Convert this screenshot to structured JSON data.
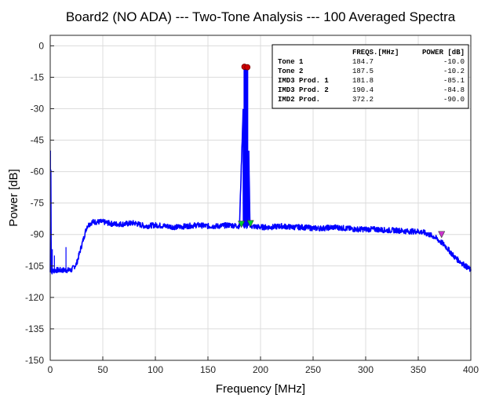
{
  "chart_data": {
    "type": "line",
    "title": "Board2 (NO ADA) --- Two-Tone Analysis --- 100 Averaged Spectra",
    "xlabel": "Frequency [MHz]",
    "ylabel": "Power [dB]",
    "xlim": [
      0,
      400
    ],
    "ylim": [
      -150,
      5
    ],
    "xticks": [
      0,
      50,
      100,
      150,
      200,
      250,
      300,
      350,
      400
    ],
    "yticks": [
      0,
      -15,
      -30,
      -45,
      -60,
      -75,
      -90,
      -105,
      -120,
      -135,
      -150
    ],
    "grid": true,
    "line_color": "#0000ff",
    "series": [
      {
        "x": [
          0,
          0.5,
          1,
          2,
          5,
          10,
          15,
          20,
          25,
          30,
          35,
          40,
          50,
          60,
          70,
          80,
          90,
          100,
          110,
          120,
          130,
          140,
          150,
          160,
          170,
          180,
          184.7,
          187.5,
          190,
          200,
          210,
          220,
          230,
          240,
          250,
          260,
          270,
          280,
          290,
          300,
          310,
          320,
          330,
          340,
          350,
          355,
          360,
          365,
          370,
          375,
          380,
          385,
          390,
          395,
          400
        ],
        "y": [
          -108,
          -50,
          -108,
          -107.5,
          -107,
          -107,
          -107,
          -107,
          -104,
          -95,
          -86,
          -84,
          -84,
          -85,
          -85,
          -84.5,
          -86,
          -85.5,
          -86,
          -86.5,
          -86,
          -85.5,
          -86,
          -86,
          -85.5,
          -86,
          -10,
          -10.2,
          -86,
          -86.5,
          -86.5,
          -86,
          -86.5,
          -86.5,
          -87,
          -87,
          -86.5,
          -87,
          -87.5,
          -87.5,
          -87.5,
          -88,
          -88,
          -88.5,
          -88.5,
          -89,
          -90,
          -91,
          -93,
          -95,
          -98,
          -101,
          -103,
          -105,
          -107
        ]
      }
    ],
    "markers": [
      {
        "name": "Tone 1",
        "x": 184.7,
        "y": -10.0,
        "color": "#cc0000"
      },
      {
        "name": "Tone 2",
        "x": 187.5,
        "y": -10.2,
        "color": "#cc0000"
      },
      {
        "name": "IMD3 Prod. 1",
        "x": 181.8,
        "y": -85.1,
        "color": "#00cc33"
      },
      {
        "name": "IMD3 Prod. 2",
        "x": 190.4,
        "y": -84.8,
        "color": "#00cc33"
      },
      {
        "name": "IMD2 Prod.",
        "x": 372.2,
        "y": -90.0,
        "color": "#cc33cc"
      }
    ],
    "table": {
      "headers": [
        "",
        "FREQS.[MHz]",
        "POWER [dB]"
      ],
      "rows": [
        [
          "Tone 1",
          "184.7",
          "-10.0"
        ],
        [
          "Tone 2",
          "187.5",
          "-10.2"
        ],
        [
          "IMD3 Prod. 1",
          "181.8",
          "-85.1"
        ],
        [
          "IMD3 Prod. 2",
          "190.4",
          "-84.8"
        ],
        [
          "IMD2 Prod.",
          "372.2",
          "-90.0"
        ]
      ]
    }
  }
}
